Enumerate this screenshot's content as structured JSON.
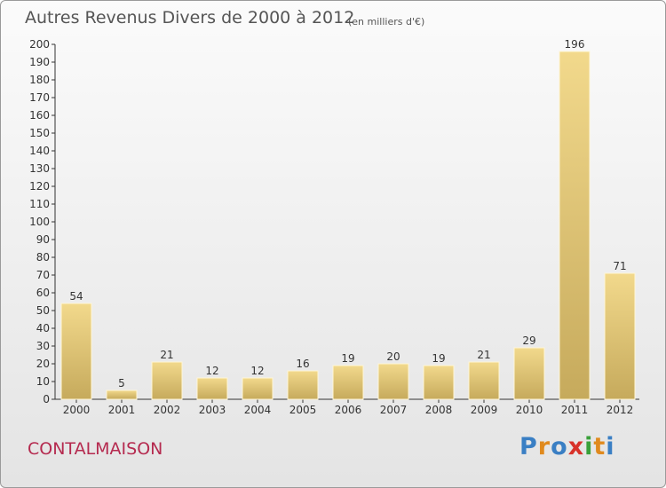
{
  "header": {
    "title": "Autres Revenus Divers de 2000 à 2012",
    "subtitle": "(en milliers d'€)"
  },
  "footer": {
    "commune": "CONTALMAISON",
    "logo_text": "Proxiti"
  },
  "colors": {
    "commune": "#b52a4f",
    "bar_top": "#f2d98c",
    "bar_bottom": "#c6aa5c",
    "logo": [
      "#3a7fc4",
      "#e08a1e",
      "#3a7fc4",
      "#d8322a",
      "#3aa03a",
      "#e08a1e",
      "#3a7fc4"
    ]
  },
  "chart_data": {
    "type": "bar",
    "title": "Autres Revenus Divers de 2000 à 2012",
    "subtitle": "(en milliers d'€)",
    "xlabel": "",
    "ylabel": "",
    "categories": [
      "2000",
      "2001",
      "2002",
      "2003",
      "2004",
      "2005",
      "2006",
      "2007",
      "2008",
      "2009",
      "2010",
      "2011",
      "2012"
    ],
    "values": [
      54,
      5,
      21,
      12,
      12,
      16,
      19,
      20,
      19,
      21,
      29,
      196,
      71
    ],
    "ylim": [
      0,
      200
    ],
    "yticks": [
      0,
      10,
      20,
      30,
      40,
      50,
      60,
      70,
      80,
      90,
      100,
      110,
      120,
      130,
      140,
      150,
      160,
      170,
      180,
      190,
      200
    ],
    "grid": false,
    "legend": "none",
    "data_labels": true
  }
}
